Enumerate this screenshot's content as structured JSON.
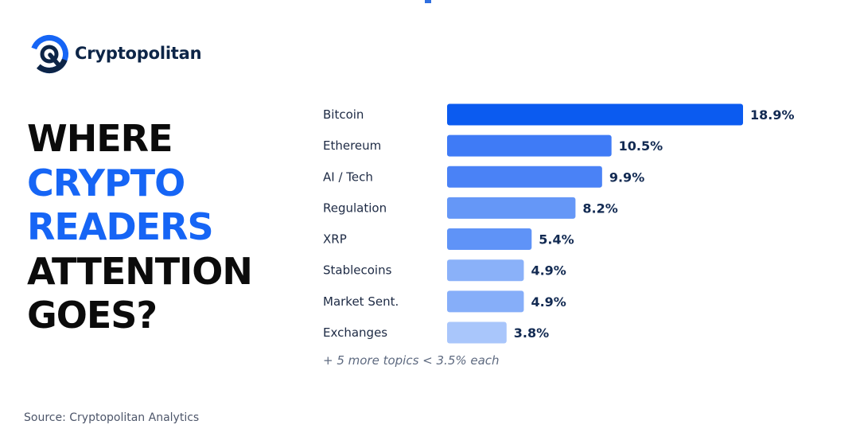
{
  "brand": {
    "name": "Cryptopolitan"
  },
  "headline": {
    "lines": [
      {
        "text": "WHERE",
        "color": "#0b0b0b"
      },
      {
        "text": "CRYPTO",
        "color": "#1665f5"
      },
      {
        "text": "READERS",
        "color": "#1665f5"
      },
      {
        "text": "ATTENTION",
        "color": "#0b0b0b"
      },
      {
        "text": "GOES?",
        "color": "#0b0b0b"
      }
    ]
  },
  "chart_data": {
    "type": "bar",
    "orientation": "horizontal",
    "categories": [
      "Bitcoin",
      "Ethereum",
      "AI / Tech",
      "Regulation",
      "XRP",
      "Stablecoins",
      "Market Sent.",
      "Exchanges"
    ],
    "values": [
      18.9,
      10.5,
      9.9,
      8.2,
      5.4,
      4.9,
      4.9,
      3.8
    ],
    "value_labels": [
      "18.9%",
      "10.5%",
      "9.9%",
      "8.2%",
      "5.4%",
      "4.9%",
      "4.9%",
      "3.8%"
    ],
    "bar_colors": [
      "#0b5bf0",
      "#3f7bf6",
      "#4a82f6",
      "#6597f7",
      "#5f93f7",
      "#8ab1f9",
      "#86aef9",
      "#a9c6fb"
    ],
    "grid": false,
    "note": "+ 5 more topics < 3.5% each"
  },
  "source": "Source: Cryptopolitan Analytics"
}
